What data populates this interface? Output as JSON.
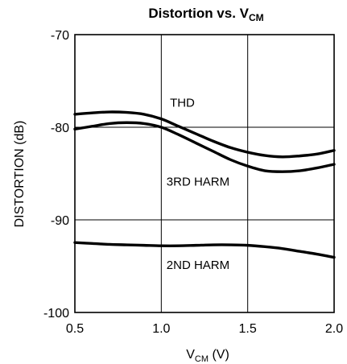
{
  "chart_data": {
    "type": "line",
    "title": {
      "main": "Distortion vs. V",
      "subscript": "CM"
    },
    "xlabel": {
      "main": "V",
      "subscript": "CM",
      "suffix": " (V)"
    },
    "ylabel": "DISTORTION (dB)",
    "xlim": [
      0.5,
      2.0
    ],
    "ylim": [
      -100,
      -70
    ],
    "x_ticks": [
      {
        "value": 0.5,
        "label": "0.5"
      },
      {
        "value": 1.0,
        "label": "1.0"
      },
      {
        "value": 1.5,
        "label": "1.5"
      },
      {
        "value": 2.0,
        "label": "2.0"
      }
    ],
    "y_ticks": [
      {
        "value": -70,
        "label": "-70"
      },
      {
        "value": -80,
        "label": "-80"
      },
      {
        "value": -90,
        "label": "-90"
      },
      {
        "value": -100,
        "label": "-100"
      }
    ],
    "grid": true,
    "series": [
      {
        "name": "THD",
        "points": [
          [
            0.5,
            -78.6
          ],
          [
            0.6,
            -78.45
          ],
          [
            0.7,
            -78.35
          ],
          [
            0.8,
            -78.4
          ],
          [
            0.9,
            -78.6
          ],
          [
            1.0,
            -79.1
          ],
          [
            1.1,
            -79.9
          ],
          [
            1.2,
            -80.7
          ],
          [
            1.3,
            -81.5
          ],
          [
            1.4,
            -82.2
          ],
          [
            1.5,
            -82.7
          ],
          [
            1.6,
            -83.05
          ],
          [
            1.7,
            -83.2
          ],
          [
            1.8,
            -83.1
          ],
          [
            1.9,
            -82.9
          ],
          [
            2.0,
            -82.5
          ]
        ]
      },
      {
        "name": "3RD HARM",
        "points": [
          [
            0.5,
            -80.2
          ],
          [
            0.6,
            -79.9
          ],
          [
            0.7,
            -79.6
          ],
          [
            0.8,
            -79.5
          ],
          [
            0.9,
            -79.6
          ],
          [
            1.0,
            -80.0
          ],
          [
            1.1,
            -80.8
          ],
          [
            1.2,
            -81.7
          ],
          [
            1.3,
            -82.6
          ],
          [
            1.4,
            -83.5
          ],
          [
            1.5,
            -84.2
          ],
          [
            1.6,
            -84.7
          ],
          [
            1.7,
            -84.8
          ],
          [
            1.8,
            -84.7
          ],
          [
            1.9,
            -84.4
          ],
          [
            2.0,
            -84.0
          ]
        ]
      },
      {
        "name": "2ND HARM",
        "points": [
          [
            0.5,
            -92.45
          ],
          [
            0.6,
            -92.55
          ],
          [
            0.7,
            -92.65
          ],
          [
            0.8,
            -92.7
          ],
          [
            0.9,
            -92.75
          ],
          [
            1.0,
            -92.8
          ],
          [
            1.1,
            -92.8
          ],
          [
            1.2,
            -92.75
          ],
          [
            1.3,
            -92.7
          ],
          [
            1.4,
            -92.7
          ],
          [
            1.5,
            -92.75
          ],
          [
            1.6,
            -92.9
          ],
          [
            1.7,
            -93.1
          ],
          [
            1.8,
            -93.4
          ],
          [
            1.9,
            -93.7
          ],
          [
            2.0,
            -94.05
          ]
        ]
      }
    ],
    "annotations": [
      {
        "text": "THD",
        "x": 1.05,
        "y": -77.8
      },
      {
        "text": "3RD HARM",
        "x": 1.03,
        "y": -86.3
      },
      {
        "text": "2ND HARM",
        "x": 1.03,
        "y": -95.3
      }
    ]
  }
}
